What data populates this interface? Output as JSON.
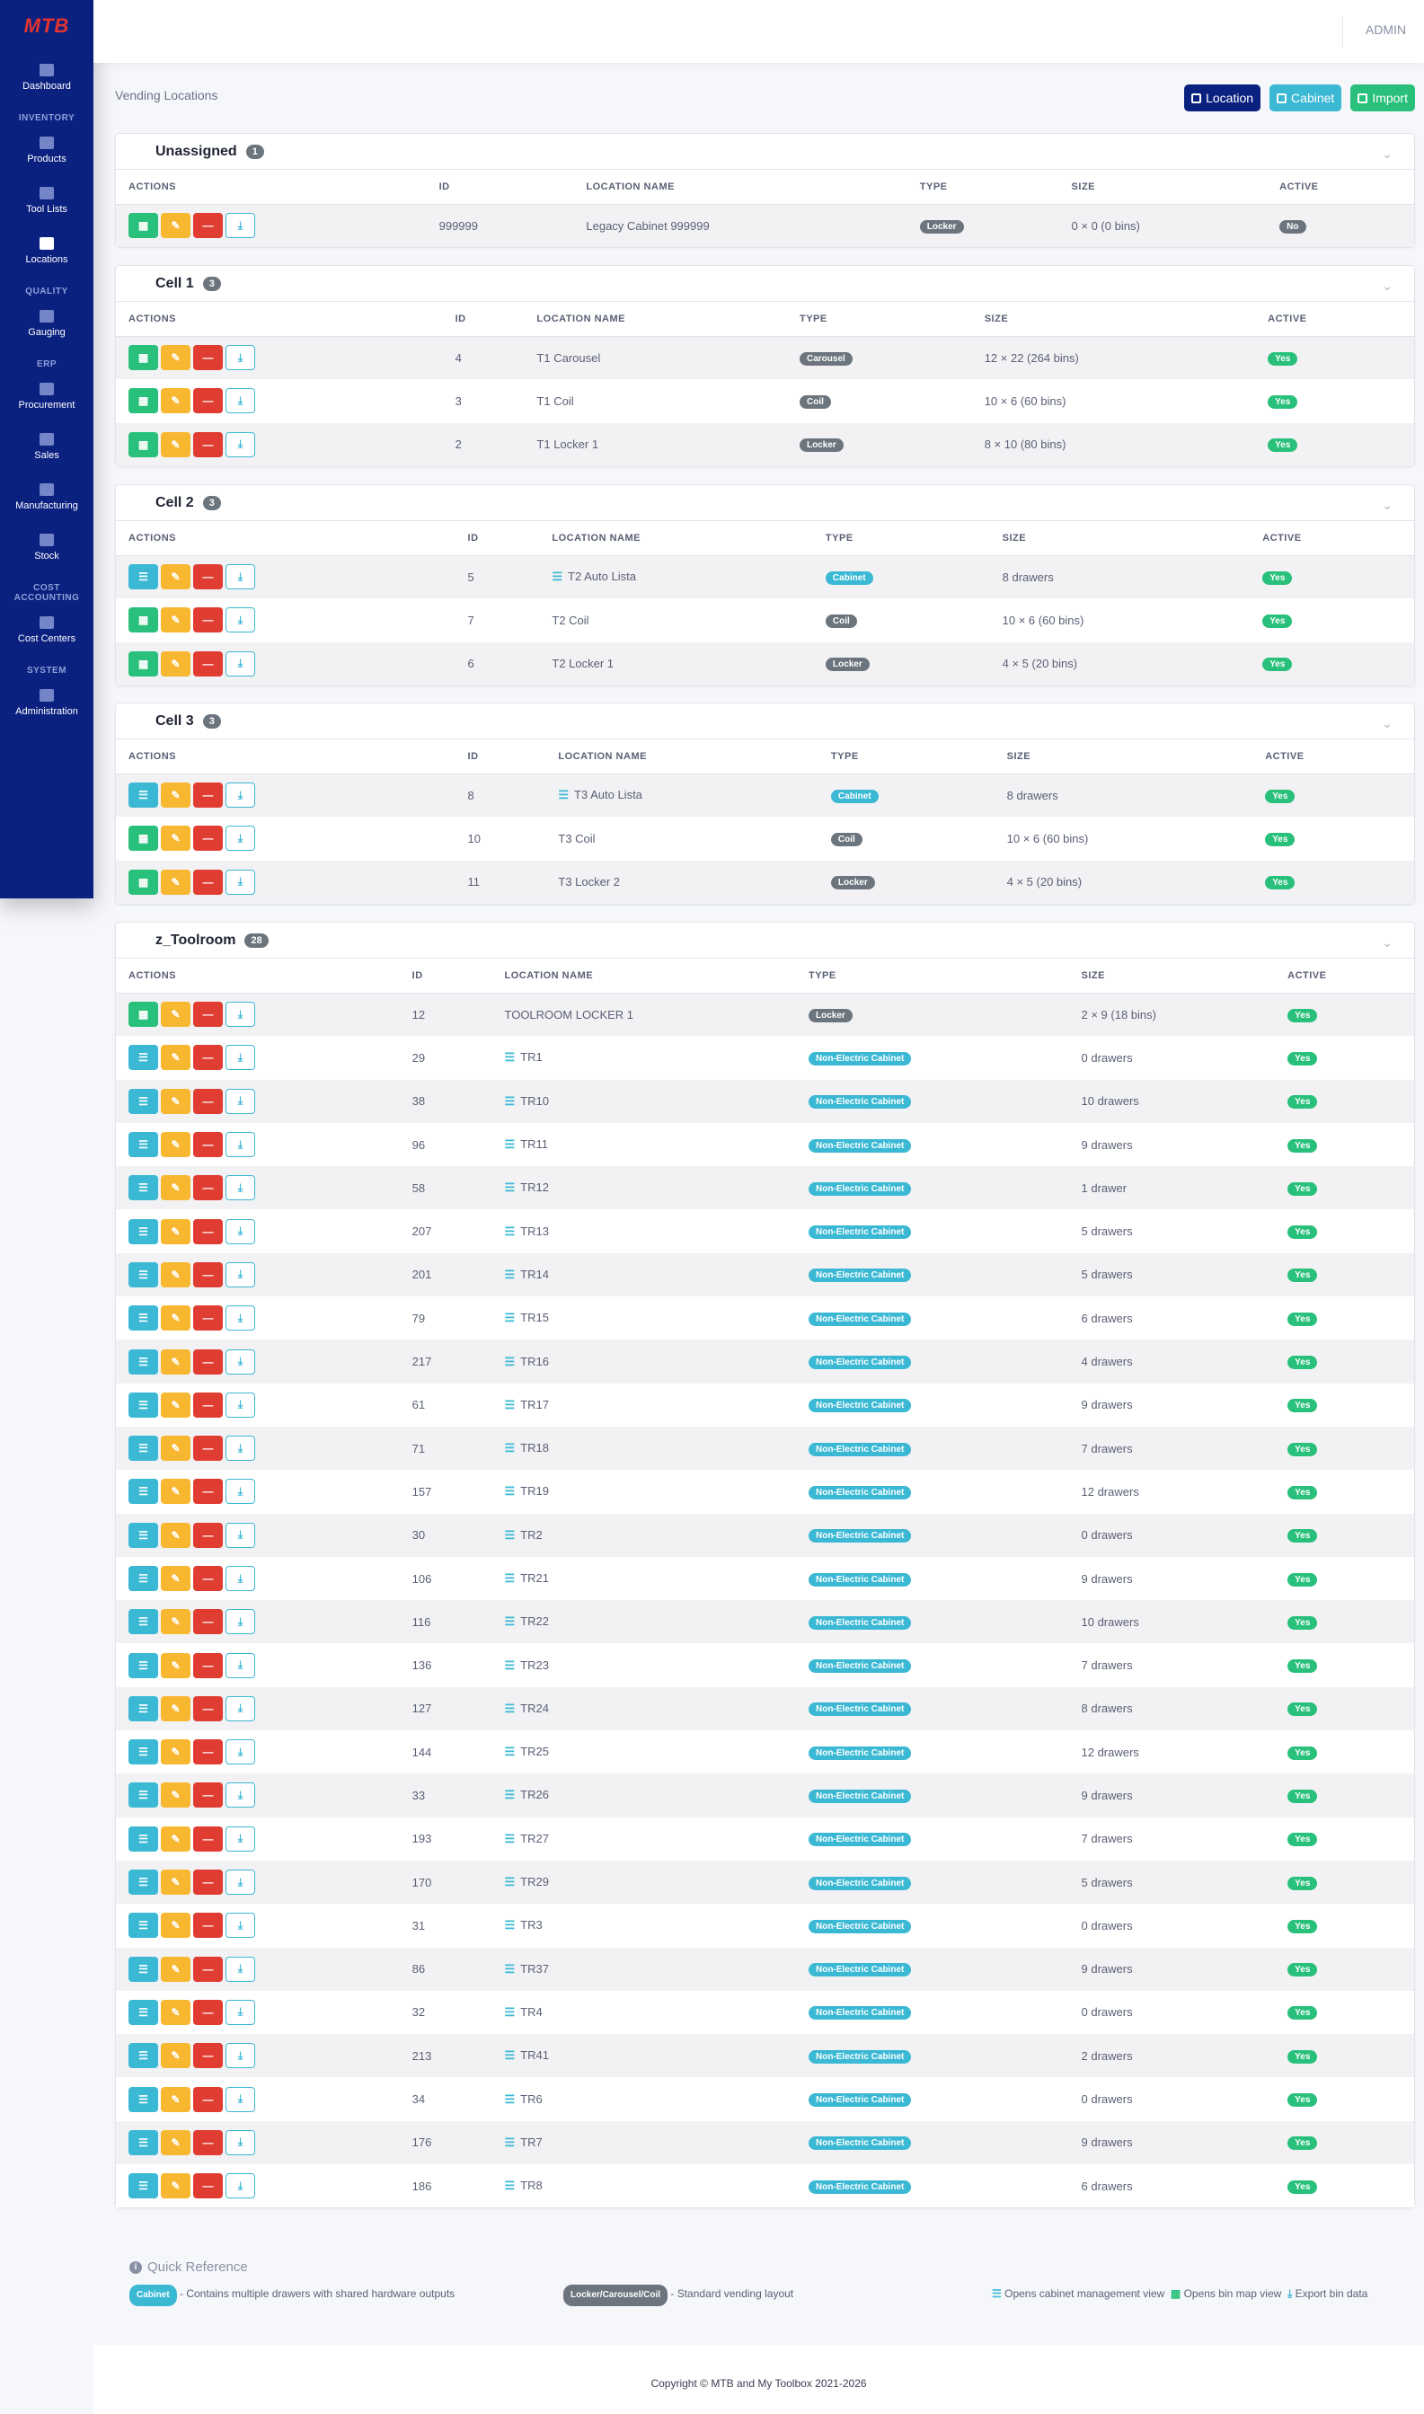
{
  "app": {
    "logo": "MTB",
    "user": "ADMIN"
  },
  "sidebar": {
    "dashboard": "Dashboard",
    "inventory_header": "INVENTORY",
    "products": "Products",
    "tool_lists": "Tool Lists",
    "locations": "Locations",
    "quality_header": "QUALITY",
    "gauging": "Gauging",
    "erp_header": "ERP",
    "procurement": "Procurement",
    "sales": "Sales",
    "manufacturing": "Manufacturing",
    "stock": "Stock",
    "cost_header": "COST ACCOUNTING",
    "cost_centers": "Cost Centers",
    "system_header": "SYSTEM",
    "administration": "Administration"
  },
  "page": {
    "title": "Vending Locations"
  },
  "header_buttons": {
    "location": "Location",
    "cabinet": "Cabinet",
    "import": "Import"
  },
  "columns": {
    "actions": "ACTIONS",
    "id": "ID",
    "name": "LOCATION NAME",
    "type": "TYPE",
    "size": "SIZE",
    "active": "ACTIVE"
  },
  "groups": [
    {
      "title": "Unassigned",
      "count": "1",
      "rows": [
        {
          "kind": "map",
          "id": "999999",
          "name": "Legacy Cabinet 999999",
          "cab": false,
          "type": "Locker",
          "tclass": "bg-grey",
          "size": "0 × 0 (0 bins)",
          "active": "No",
          "aclass": "bg-grey"
        }
      ]
    },
    {
      "title": "Cell 1",
      "count": "3",
      "rows": [
        {
          "kind": "map",
          "id": "4",
          "name": "T1 Carousel",
          "cab": false,
          "type": "Carousel",
          "tclass": "bg-grey",
          "size": "12 × 22 (264 bins)",
          "active": "Yes",
          "aclass": "bg-yes"
        },
        {
          "kind": "map",
          "id": "3",
          "name": "T1 Coil",
          "cab": false,
          "type": "Coil",
          "tclass": "bg-grey",
          "size": "10 × 6 (60 bins)",
          "active": "Yes",
          "aclass": "bg-yes"
        },
        {
          "kind": "map",
          "id": "2",
          "name": "T1 Locker 1",
          "cab": false,
          "type": "Locker",
          "tclass": "bg-grey",
          "size": "8 × 10 (80 bins)",
          "active": "Yes",
          "aclass": "bg-yes"
        }
      ]
    },
    {
      "title": "Cell 2",
      "count": "3",
      "rows": [
        {
          "kind": "cab",
          "id": "5",
          "name": "T2 Auto Lista",
          "cab": true,
          "type": "Cabinet",
          "tclass": "bg-cab",
          "size": "8 drawers",
          "active": "Yes",
          "aclass": "bg-yes"
        },
        {
          "kind": "map",
          "id": "7",
          "name": "T2 Coil",
          "cab": false,
          "type": "Coil",
          "tclass": "bg-grey",
          "size": "10 × 6 (60 bins)",
          "active": "Yes",
          "aclass": "bg-yes"
        },
        {
          "kind": "map",
          "id": "6",
          "name": "T2 Locker 1",
          "cab": false,
          "type": "Locker",
          "tclass": "bg-grey",
          "size": "4 × 5 (20 bins)",
          "active": "Yes",
          "aclass": "bg-yes"
        }
      ]
    },
    {
      "title": "Cell 3",
      "count": "3",
      "rows": [
        {
          "kind": "cab",
          "id": "8",
          "name": "T3 Auto Lista",
          "cab": true,
          "type": "Cabinet",
          "tclass": "bg-cab",
          "size": "8 drawers",
          "active": "Yes",
          "aclass": "bg-yes"
        },
        {
          "kind": "map",
          "id": "10",
          "name": "T3 Coil",
          "cab": false,
          "type": "Coil",
          "tclass": "bg-grey",
          "size": "10 × 6 (60 bins)",
          "active": "Yes",
          "aclass": "bg-yes"
        },
        {
          "kind": "map",
          "id": "11",
          "name": "T3 Locker 2",
          "cab": false,
          "type": "Locker",
          "tclass": "bg-grey",
          "size": "4 × 5 (20 bins)",
          "active": "Yes",
          "aclass": "bg-yes"
        }
      ]
    },
    {
      "title": "z_Toolroom",
      "count": "28",
      "rows": [
        {
          "kind": "map",
          "id": "12",
          "name": "TOOLROOM LOCKER 1",
          "cab": false,
          "type": "Locker",
          "tclass": "bg-grey",
          "size": "2 × 9 (18 bins)",
          "active": "Yes",
          "aclass": "bg-yes"
        },
        {
          "kind": "cab",
          "id": "29",
          "name": "TR1",
          "cab": true,
          "type": "Non-Electric Cabinet",
          "tclass": "bg-cab",
          "size": "0 drawers",
          "active": "Yes",
          "aclass": "bg-yes"
        },
        {
          "kind": "cab",
          "id": "38",
          "name": "TR10",
          "cab": true,
          "type": "Non-Electric Cabinet",
          "tclass": "bg-cab",
          "size": "10 drawers",
          "active": "Yes",
          "aclass": "bg-yes"
        },
        {
          "kind": "cab",
          "id": "96",
          "name": "TR11",
          "cab": true,
          "type": "Non-Electric Cabinet",
          "tclass": "bg-cab",
          "size": "9 drawers",
          "active": "Yes",
          "aclass": "bg-yes"
        },
        {
          "kind": "cab",
          "id": "58",
          "name": "TR12",
          "cab": true,
          "type": "Non-Electric Cabinet",
          "tclass": "bg-cab",
          "size": "1 drawer",
          "active": "Yes",
          "aclass": "bg-yes"
        },
        {
          "kind": "cab",
          "id": "207",
          "name": "TR13",
          "cab": true,
          "type": "Non-Electric Cabinet",
          "tclass": "bg-cab",
          "size": "5 drawers",
          "active": "Yes",
          "aclass": "bg-yes"
        },
        {
          "kind": "cab",
          "id": "201",
          "name": "TR14",
          "cab": true,
          "type": "Non-Electric Cabinet",
          "tclass": "bg-cab",
          "size": "5 drawers",
          "active": "Yes",
          "aclass": "bg-yes"
        },
        {
          "kind": "cab",
          "id": "79",
          "name": "TR15",
          "cab": true,
          "type": "Non-Electric Cabinet",
          "tclass": "bg-cab",
          "size": "6 drawers",
          "active": "Yes",
          "aclass": "bg-yes"
        },
        {
          "kind": "cab",
          "id": "217",
          "name": "TR16",
          "cab": true,
          "type": "Non-Electric Cabinet",
          "tclass": "bg-cab",
          "size": "4 drawers",
          "active": "Yes",
          "aclass": "bg-yes"
        },
        {
          "kind": "cab",
          "id": "61",
          "name": "TR17",
          "cab": true,
          "type": "Non-Electric Cabinet",
          "tclass": "bg-cab",
          "size": "9 drawers",
          "active": "Yes",
          "aclass": "bg-yes"
        },
        {
          "kind": "cab",
          "id": "71",
          "name": "TR18",
          "cab": true,
          "type": "Non-Electric Cabinet",
          "tclass": "bg-cab",
          "size": "7 drawers",
          "active": "Yes",
          "aclass": "bg-yes"
        },
        {
          "kind": "cab",
          "id": "157",
          "name": "TR19",
          "cab": true,
          "type": "Non-Electric Cabinet",
          "tclass": "bg-cab",
          "size": "12 drawers",
          "active": "Yes",
          "aclass": "bg-yes"
        },
        {
          "kind": "cab",
          "id": "30",
          "name": "TR2",
          "cab": true,
          "type": "Non-Electric Cabinet",
          "tclass": "bg-cab",
          "size": "0 drawers",
          "active": "Yes",
          "aclass": "bg-yes"
        },
        {
          "kind": "cab",
          "id": "106",
          "name": "TR21",
          "cab": true,
          "type": "Non-Electric Cabinet",
          "tclass": "bg-cab",
          "size": "9 drawers",
          "active": "Yes",
          "aclass": "bg-yes"
        },
        {
          "kind": "cab",
          "id": "116",
          "name": "TR22",
          "cab": true,
          "type": "Non-Electric Cabinet",
          "tclass": "bg-cab",
          "size": "10 drawers",
          "active": "Yes",
          "aclass": "bg-yes"
        },
        {
          "kind": "cab",
          "id": "136",
          "name": "TR23",
          "cab": true,
          "type": "Non-Electric Cabinet",
          "tclass": "bg-cab",
          "size": "7 drawers",
          "active": "Yes",
          "aclass": "bg-yes"
        },
        {
          "kind": "cab",
          "id": "127",
          "name": "TR24",
          "cab": true,
          "type": "Non-Electric Cabinet",
          "tclass": "bg-cab",
          "size": "8 drawers",
          "active": "Yes",
          "aclass": "bg-yes"
        },
        {
          "kind": "cab",
          "id": "144",
          "name": "TR25",
          "cab": true,
          "type": "Non-Electric Cabinet",
          "tclass": "bg-cab",
          "size": "12 drawers",
          "active": "Yes",
          "aclass": "bg-yes"
        },
        {
          "kind": "cab",
          "id": "33",
          "name": "TR26",
          "cab": true,
          "type": "Non-Electric Cabinet",
          "tclass": "bg-cab",
          "size": "9 drawers",
          "active": "Yes",
          "aclass": "bg-yes"
        },
        {
          "kind": "cab",
          "id": "193",
          "name": "TR27",
          "cab": true,
          "type": "Non-Electric Cabinet",
          "tclass": "bg-cab",
          "size": "7 drawers",
          "active": "Yes",
          "aclass": "bg-yes"
        },
        {
          "kind": "cab",
          "id": "170",
          "name": "TR29",
          "cab": true,
          "type": "Non-Electric Cabinet",
          "tclass": "bg-cab",
          "size": "5 drawers",
          "active": "Yes",
          "aclass": "bg-yes"
        },
        {
          "kind": "cab",
          "id": "31",
          "name": "TR3",
          "cab": true,
          "type": "Non-Electric Cabinet",
          "tclass": "bg-cab",
          "size": "0 drawers",
          "active": "Yes",
          "aclass": "bg-yes"
        },
        {
          "kind": "cab",
          "id": "86",
          "name": "TR37",
          "cab": true,
          "type": "Non-Electric Cabinet",
          "tclass": "bg-cab",
          "size": "9 drawers",
          "active": "Yes",
          "aclass": "bg-yes"
        },
        {
          "kind": "cab",
          "id": "32",
          "name": "TR4",
          "cab": true,
          "type": "Non-Electric Cabinet",
          "tclass": "bg-cab",
          "size": "0 drawers",
          "active": "Yes",
          "aclass": "bg-yes"
        },
        {
          "kind": "cab",
          "id": "213",
          "name": "TR41",
          "cab": true,
          "type": "Non-Electric Cabinet",
          "tclass": "bg-cab",
          "size": "2 drawers",
          "active": "Yes",
          "aclass": "bg-yes"
        },
        {
          "kind": "cab",
          "id": "34",
          "name": "TR6",
          "cab": true,
          "type": "Non-Electric Cabinet",
          "tclass": "bg-cab",
          "size": "0 drawers",
          "active": "Yes",
          "aclass": "bg-yes"
        },
        {
          "kind": "cab",
          "id": "176",
          "name": "TR7",
          "cab": true,
          "type": "Non-Electric Cabinet",
          "tclass": "bg-cab",
          "size": "9 drawers",
          "active": "Yes",
          "aclass": "bg-yes"
        },
        {
          "kind": "cab",
          "id": "186",
          "name": "TR8",
          "cab": true,
          "type": "Non-Electric Cabinet",
          "tclass": "bg-cab",
          "size": "6 drawers",
          "active": "Yes",
          "aclass": "bg-yes"
        }
      ]
    }
  ],
  "quick_ref": {
    "title": "Quick Reference",
    "cabinet_badge": "Cabinet",
    "cabinet_text": "- Contains multiple drawers with shared hardware outputs",
    "vending_badge": "Locker/Carousel/Coil",
    "vending_text": "- Standard vending layout",
    "cab_view_text": "Opens cabinet management view",
    "bin_map_text": "Opens bin map view",
    "export_text": "Export bin data"
  },
  "footer": {
    "copyright": "Copyright © MTB and My Toolbox 2021-2026"
  }
}
